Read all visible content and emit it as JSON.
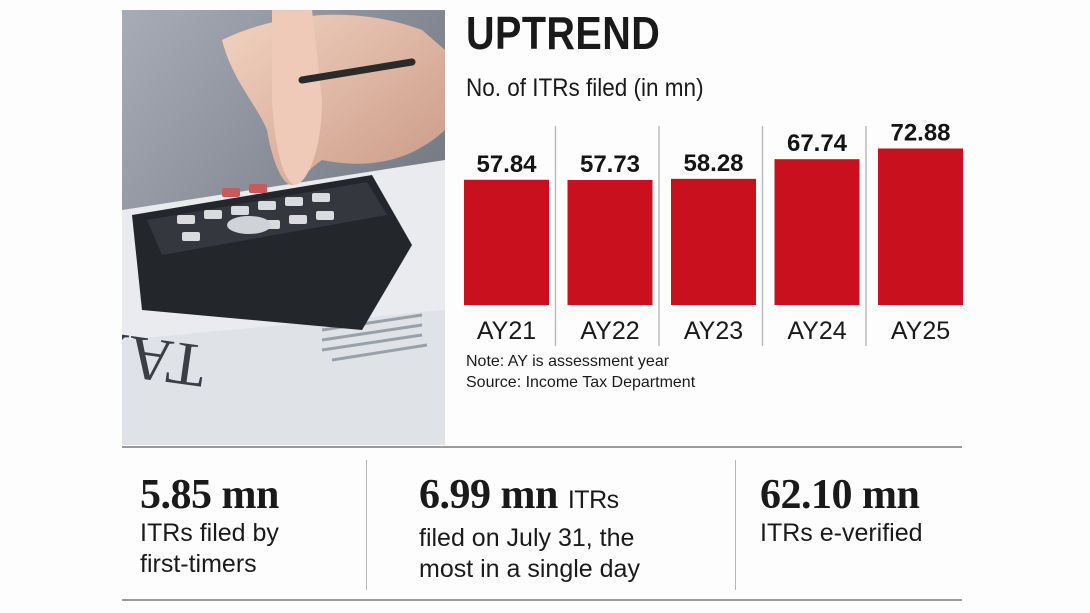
{
  "header": {
    "title": "UPTREND",
    "subtitle": "No. of ITRs filed (in mn)"
  },
  "photo": {
    "caption_text": "TAX",
    "icon": "calculator-tax-photo"
  },
  "chart_data": {
    "type": "bar",
    "categories": [
      "AY21",
      "AY22",
      "AY23",
      "AY24",
      "AY25"
    ],
    "values": [
      57.84,
      57.73,
      58.28,
      67.74,
      72.88
    ],
    "value_labels": [
      "57.84",
      "57.73",
      "58.28",
      "67.74",
      "72.88"
    ],
    "title": "UPTREND",
    "subtitle": "No. of ITRs filed (in mn)",
    "bar_color": "#c8101e",
    "grid": false,
    "legend": "none"
  },
  "notes": {
    "note": "Note: AY is assessment year",
    "source": "Source: Income Tax Department"
  },
  "stats": [
    {
      "value": "5.85 mn",
      "suffix": "",
      "desc_lines": [
        "ITRs filed by",
        "first-timers"
      ]
    },
    {
      "value": "6.99 mn",
      "suffix": "ITRs",
      "desc_lines": [
        "filed on July 31, the",
        "most in a single day"
      ]
    },
    {
      "value": "62.10 mn",
      "suffix": "",
      "desc_lines": [
        "ITRs e-verified"
      ]
    }
  ],
  "colors": {
    "accent": "#c8101e",
    "rule": "#9a9a9a"
  }
}
